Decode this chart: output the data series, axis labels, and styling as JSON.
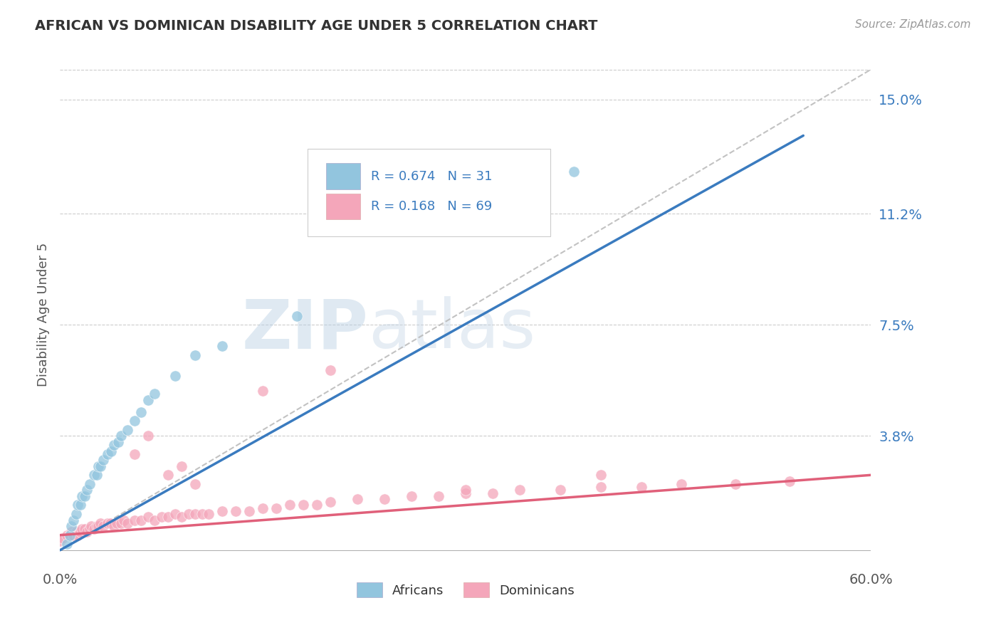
{
  "title": "AFRICAN VS DOMINICAN DISABILITY AGE UNDER 5 CORRELATION CHART",
  "source": "Source: ZipAtlas.com",
  "ylabel": "Disability Age Under 5",
  "xmin": 0.0,
  "xmax": 0.6,
  "ymin": -0.005,
  "ymax": 0.162,
  "yticks": [
    0.0,
    0.038,
    0.075,
    0.112,
    0.15
  ],
  "ytick_labels": [
    "",
    "3.8%",
    "7.5%",
    "11.2%",
    "15.0%"
  ],
  "xtick_labels": [
    "0.0%",
    "60.0%"
  ],
  "african_color": "#92c5de",
  "dominican_color": "#f4a6ba",
  "african_line_color": "#3a7bbf",
  "dominican_line_color": "#e0607a",
  "diagonal_line_color": "#b8b8b8",
  "R_african": 0.674,
  "N_african": 31,
  "R_dominican": 0.168,
  "N_dominican": 69,
  "watermark_ZIP": "ZIP",
  "watermark_atlas": "atlas",
  "african_scatter_x": [
    0.005,
    0.007,
    0.008,
    0.01,
    0.012,
    0.013,
    0.015,
    0.016,
    0.018,
    0.02,
    0.022,
    0.025,
    0.027,
    0.028,
    0.03,
    0.032,
    0.035,
    0.038,
    0.04,
    0.043,
    0.045,
    0.05,
    0.055,
    0.06,
    0.065,
    0.07,
    0.085,
    0.1,
    0.12,
    0.175,
    0.38
  ],
  "african_scatter_y": [
    0.002,
    0.005,
    0.008,
    0.01,
    0.012,
    0.015,
    0.015,
    0.018,
    0.018,
    0.02,
    0.022,
    0.025,
    0.025,
    0.028,
    0.028,
    0.03,
    0.032,
    0.033,
    0.035,
    0.036,
    0.038,
    0.04,
    0.043,
    0.046,
    0.05,
    0.052,
    0.058,
    0.065,
    0.068,
    0.078,
    0.126
  ],
  "dominican_scatter_x": [
    0.0,
    0.002,
    0.005,
    0.007,
    0.008,
    0.01,
    0.012,
    0.013,
    0.015,
    0.016,
    0.018,
    0.02,
    0.022,
    0.023,
    0.025,
    0.027,
    0.028,
    0.03,
    0.032,
    0.035,
    0.037,
    0.04,
    0.042,
    0.045,
    0.047,
    0.05,
    0.055,
    0.06,
    0.065,
    0.07,
    0.075,
    0.08,
    0.085,
    0.09,
    0.095,
    0.1,
    0.105,
    0.11,
    0.12,
    0.13,
    0.14,
    0.15,
    0.16,
    0.17,
    0.18,
    0.19,
    0.2,
    0.22,
    0.24,
    0.26,
    0.28,
    0.3,
    0.32,
    0.34,
    0.37,
    0.4,
    0.43,
    0.46,
    0.5,
    0.54,
    0.055,
    0.065,
    0.08,
    0.09,
    0.1,
    0.15,
    0.2,
    0.3,
    0.4
  ],
  "dominican_scatter_y": [
    0.003,
    0.004,
    0.005,
    0.005,
    0.006,
    0.005,
    0.006,
    0.005,
    0.006,
    0.007,
    0.007,
    0.006,
    0.007,
    0.008,
    0.007,
    0.008,
    0.008,
    0.009,
    0.008,
    0.009,
    0.009,
    0.008,
    0.009,
    0.009,
    0.01,
    0.009,
    0.01,
    0.01,
    0.011,
    0.01,
    0.011,
    0.011,
    0.012,
    0.011,
    0.012,
    0.012,
    0.012,
    0.012,
    0.013,
    0.013,
    0.013,
    0.014,
    0.014,
    0.015,
    0.015,
    0.015,
    0.016,
    0.017,
    0.017,
    0.018,
    0.018,
    0.019,
    0.019,
    0.02,
    0.02,
    0.021,
    0.021,
    0.022,
    0.022,
    0.023,
    0.032,
    0.038,
    0.025,
    0.028,
    0.022,
    0.053,
    0.06,
    0.02,
    0.025
  ],
  "african_line_x0": 0.0,
  "african_line_y0": 0.0,
  "african_line_x1": 0.55,
  "african_line_y1": 0.138,
  "dominican_line_x0": 0.0,
  "dominican_line_y0": 0.005,
  "dominican_line_x1": 0.6,
  "dominican_line_y1": 0.025
}
